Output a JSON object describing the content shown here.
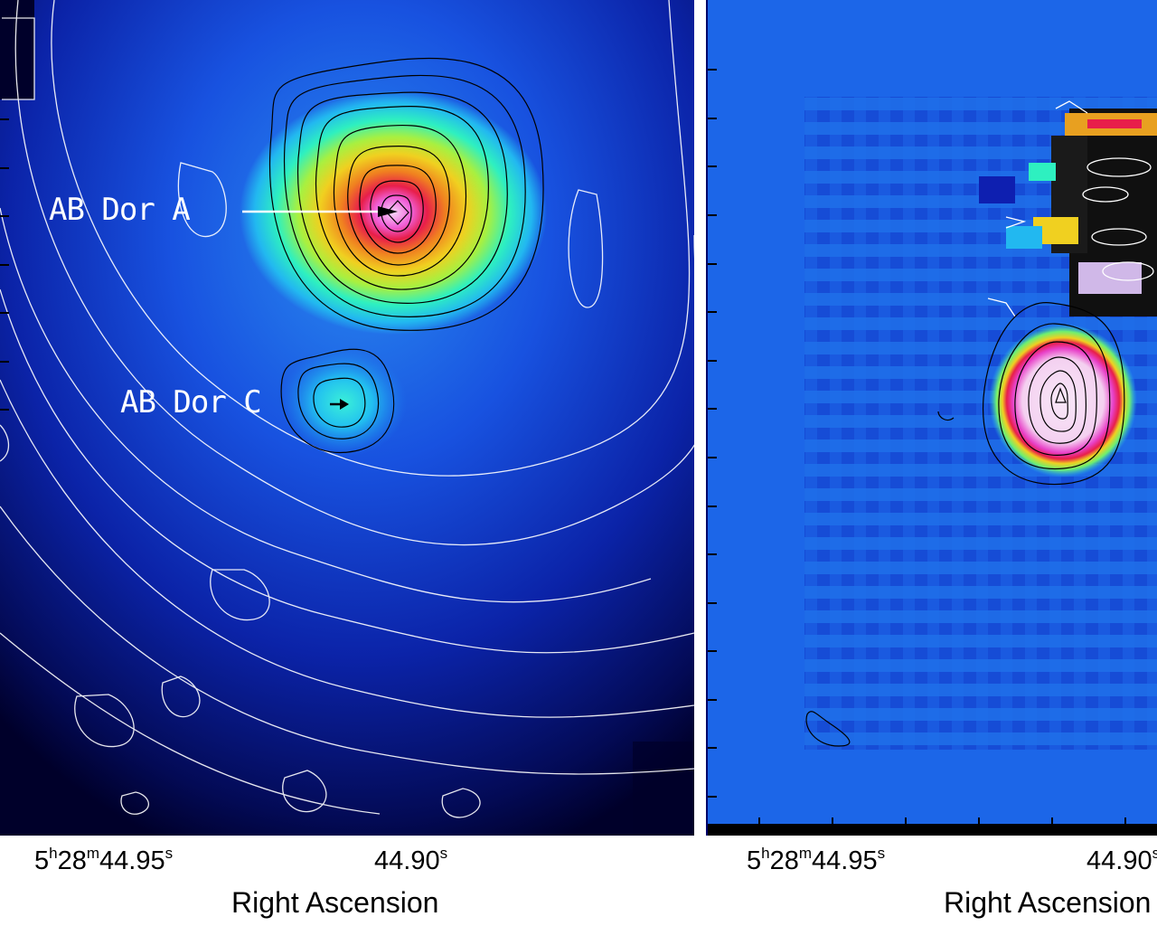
{
  "left_panel": {
    "labels": {
      "ab_dor_a": "AB Dor A",
      "ab_dor_c": "AB Dor C"
    },
    "x_axis": {
      "tick1": {
        "h": "5",
        "h_unit": "h",
        "m": "28",
        "m_unit": "m",
        "s": "44.95",
        "s_unit": "s"
      },
      "tick2": {
        "s": "44.90",
        "s_unit": "s"
      },
      "title": "Right Ascension"
    }
  },
  "right_panel": {
    "x_axis": {
      "tick1": {
        "h": "5",
        "h_unit": "h",
        "m": "28",
        "m_unit": "m",
        "s": "44.95",
        "s_unit": "s"
      },
      "tick2": {
        "s": "44.90",
        "s_unit": "s"
      },
      "title": "Right Ascension"
    }
  },
  "colors": {
    "colormap": [
      "#00002a",
      "#0a1fb0",
      "#1c66e8",
      "#22b8f0",
      "#2ef0c0",
      "#a8f040",
      "#f0d020",
      "#f08020",
      "#e81e4a",
      "#f040d0",
      "#f8c8f0"
    ]
  }
}
